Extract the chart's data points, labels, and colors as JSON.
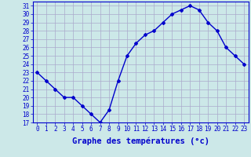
{
  "hours": [
    0,
    1,
    2,
    3,
    4,
    5,
    6,
    7,
    8,
    9,
    10,
    11,
    12,
    13,
    14,
    15,
    16,
    17,
    18,
    19,
    20,
    21,
    22,
    23
  ],
  "temps": [
    23,
    22,
    21,
    20,
    20,
    19,
    18,
    17,
    18.5,
    22,
    25,
    26.5,
    27.5,
    28,
    29,
    30,
    30.5,
    31,
    30.5,
    29,
    28,
    26,
    25,
    24
  ],
  "xlim": [
    -0.5,
    23.5
  ],
  "ylim": [
    17,
    31.5
  ],
  "yticks": [
    17,
    18,
    19,
    20,
    21,
    22,
    23,
    24,
    25,
    26,
    27,
    28,
    29,
    30,
    31
  ],
  "xtick_labels": [
    "0",
    "1",
    "2",
    "3",
    "4",
    "5",
    "6",
    "7",
    "8",
    "9",
    "10",
    "11",
    "12",
    "13",
    "14",
    "15",
    "16",
    "17",
    "18",
    "19",
    "20",
    "21",
    "22",
    "23"
  ],
  "xlabel": "Graphe des températures (°c)",
  "line_color": "#0000cc",
  "marker": "D",
  "marker_size": 2,
  "bg_color": "#cce8e8",
  "grid_color": "#aaaacc",
  "xlabel_color": "#0000cc",
  "tick_color": "#0000cc",
  "line_width": 1.0,
  "tick_fontsize": 5.5,
  "xlabel_fontsize": 7.5
}
